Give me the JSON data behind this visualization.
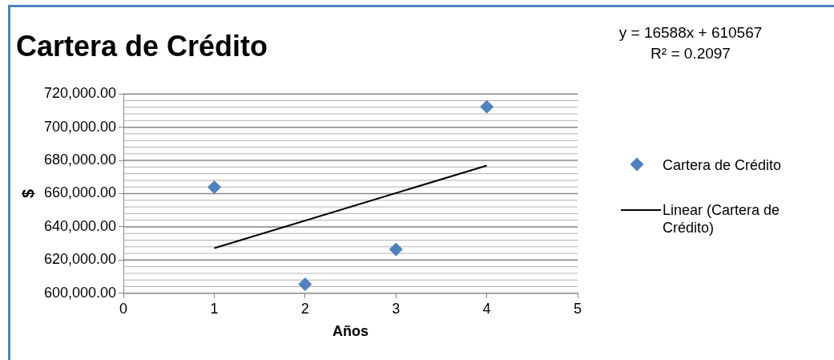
{
  "chart_data": {
    "type": "scatter",
    "title": "Cartera de Crédito",
    "xlabel": "Años",
    "ylabel": "$",
    "annotations": [
      "y = 16588x + 610567",
      "R² = 0.2097"
    ],
    "x": [
      1,
      2,
      3,
      4
    ],
    "series": [
      {
        "name": "Cartera de Crédito",
        "color": "#4f81bd",
        "values": [
          663900,
          605400,
          626400,
          712300
        ],
        "marker": "diamond"
      },
      {
        "name": "Linear (Cartera de Crédito)",
        "type": "line",
        "color": "#000000",
        "x": [
          1,
          4
        ],
        "values": [
          627155,
          676919
        ],
        "marker": "none",
        "line_style": "solid"
      }
    ],
    "xlim": [
      0,
      5
    ],
    "xticks": [
      0,
      1,
      2,
      3,
      4,
      5
    ],
    "ylim": [
      600000,
      720000
    ],
    "yticks": [
      {
        "value": 600000,
        "label": "600,000.00"
      },
      {
        "value": 604000,
        "label": null
      },
      {
        "value": 608000,
        "label": null
      },
      {
        "value": 612000,
        "label": null
      },
      {
        "value": 616000,
        "label": null
      },
      {
        "value": 620000,
        "label": "620,000.00"
      },
      {
        "value": 624000,
        "label": null
      },
      {
        "value": 628000,
        "label": null
      },
      {
        "value": 632000,
        "label": null
      },
      {
        "value": 636000,
        "label": null
      },
      {
        "value": 640000,
        "label": "640,000.00"
      },
      {
        "value": 644000,
        "label": null
      },
      {
        "value": 648000,
        "label": null
      },
      {
        "value": 652000,
        "label": null
      },
      {
        "value": 656000,
        "label": null
      },
      {
        "value": 660000,
        "label": "660,000.00"
      },
      {
        "value": 664000,
        "label": null
      },
      {
        "value": 668000,
        "label": null
      },
      {
        "value": 672000,
        "label": null
      },
      {
        "value": 676000,
        "label": null
      },
      {
        "value": 680000,
        "label": "680,000.00"
      },
      {
        "value": 684000,
        "label": null
      },
      {
        "value": 688000,
        "label": null
      },
      {
        "value": 692000,
        "label": null
      },
      {
        "value": 696000,
        "label": null
      },
      {
        "value": 700000,
        "label": "700,000.00"
      },
      {
        "value": 704000,
        "label": null
      },
      {
        "value": 708000,
        "label": null
      },
      {
        "value": 712000,
        "label": null
      },
      {
        "value": 716000,
        "label": null
      },
      {
        "value": 720000,
        "label": "720,000.00"
      }
    ],
    "grid": "y",
    "legend": "right"
  }
}
